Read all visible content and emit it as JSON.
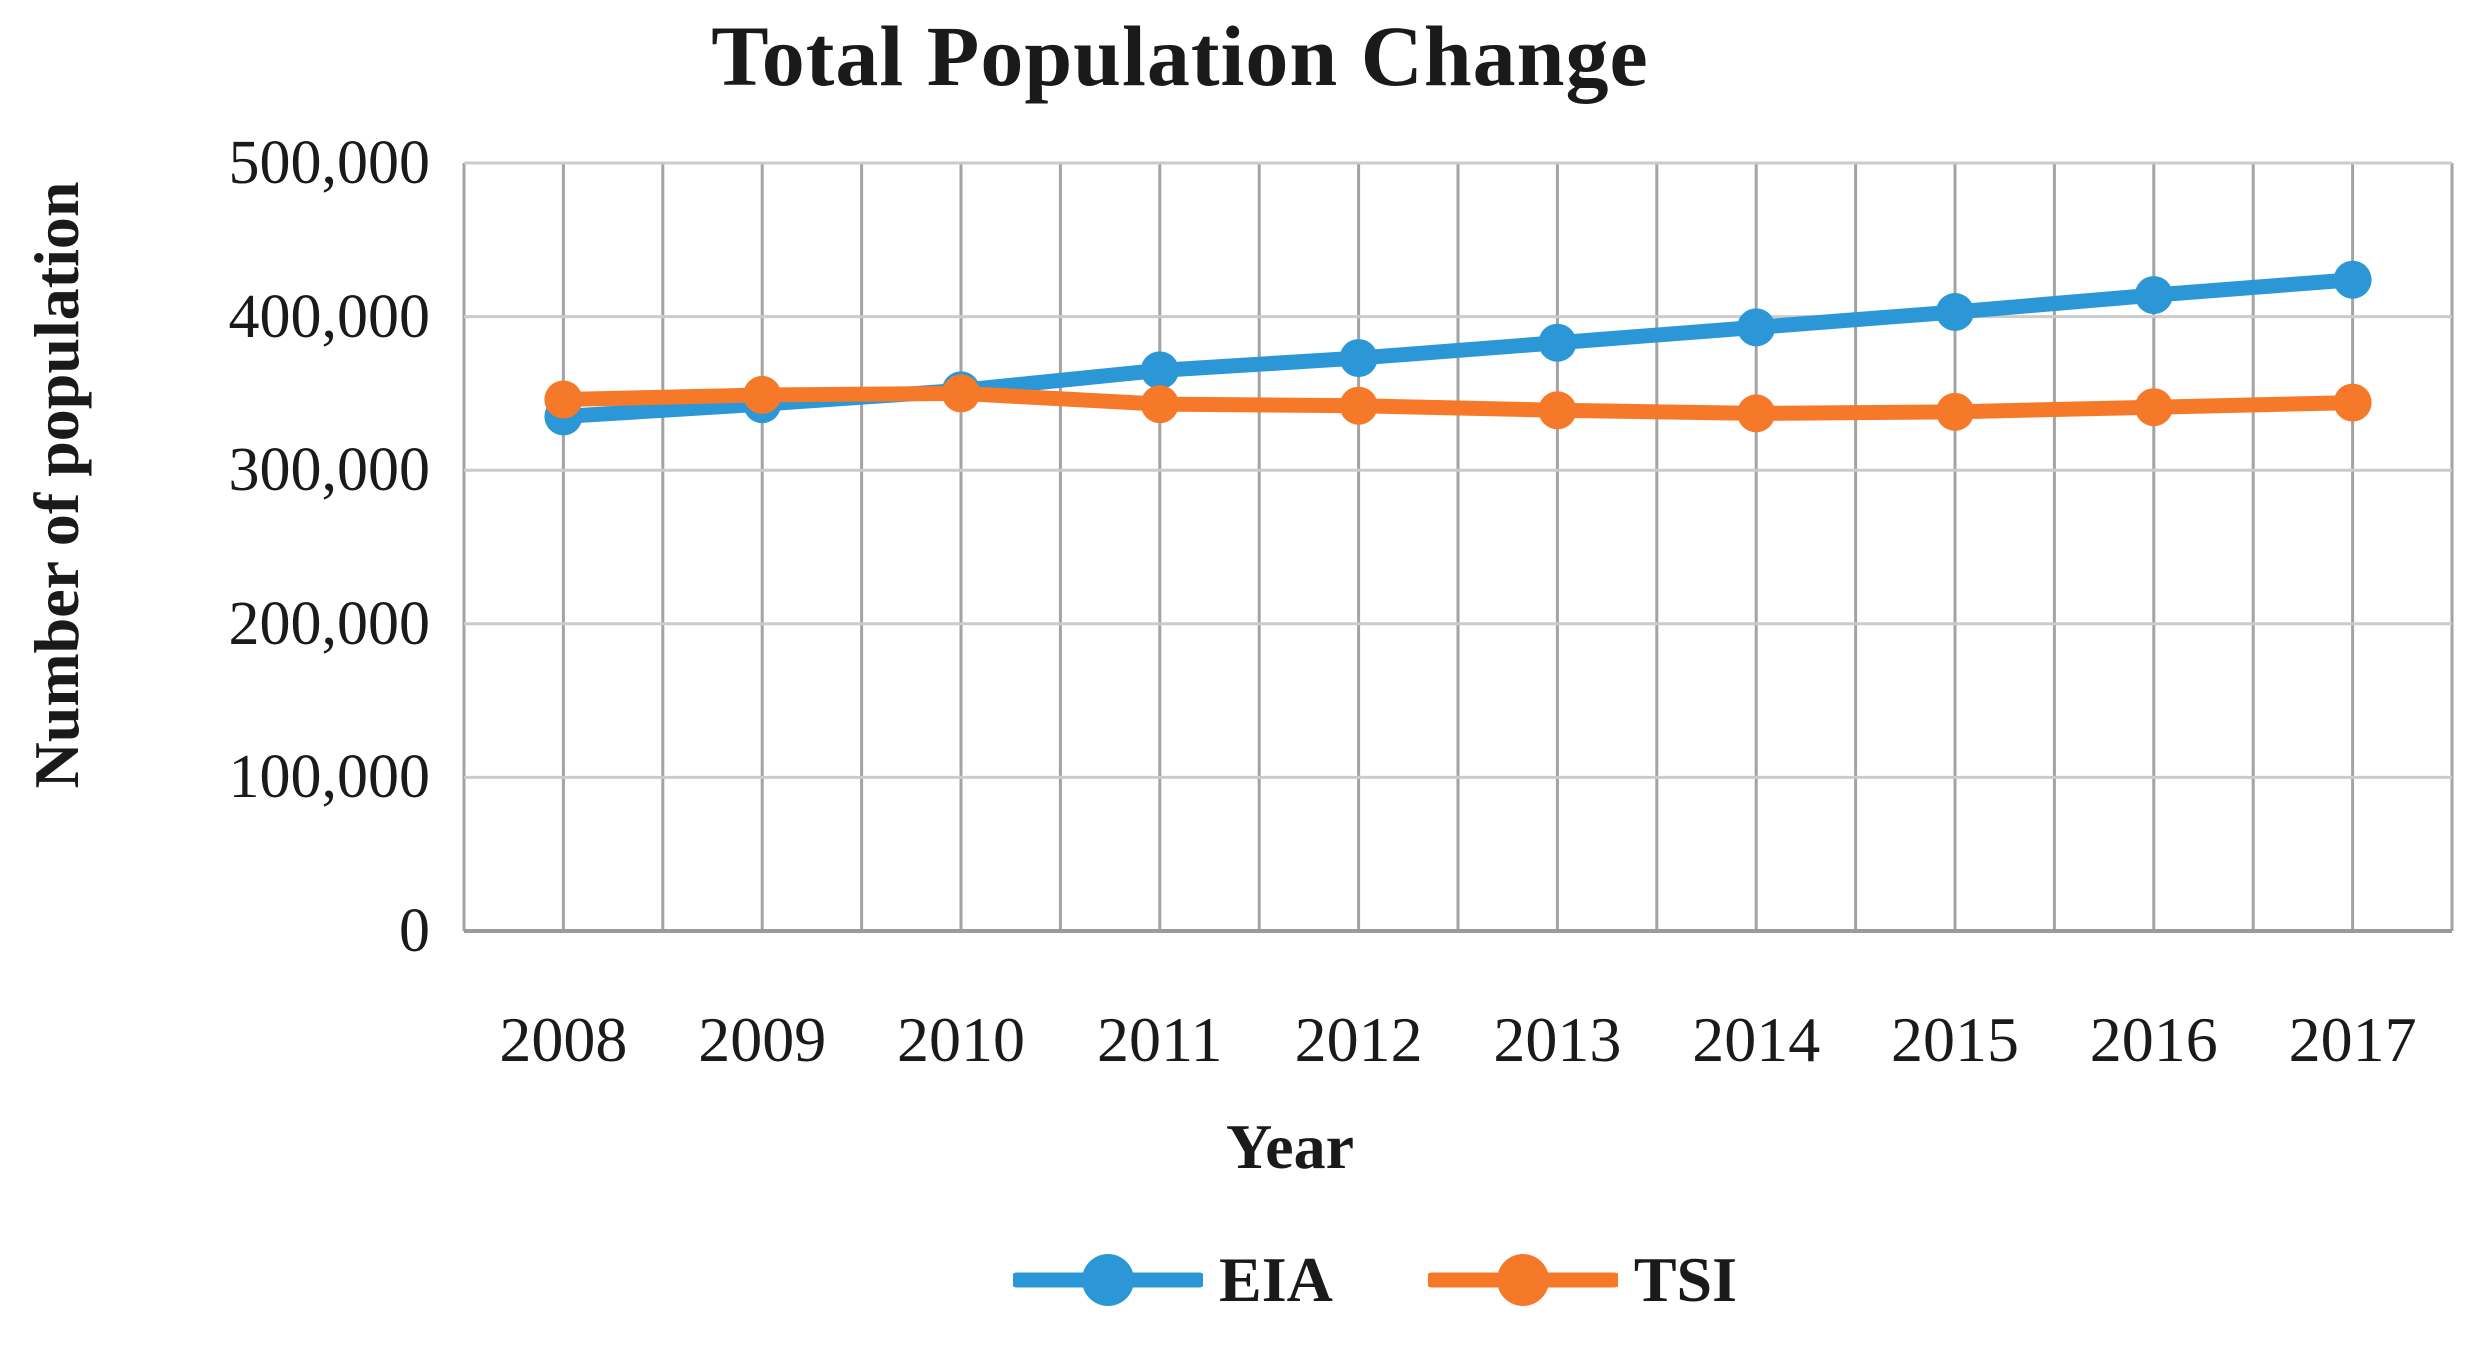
{
  "chart_data": {
    "type": "line",
    "title": "Total Population Change",
    "xlabel": "Year",
    "ylabel": "Number of population",
    "categories": [
      "2008",
      "2009",
      "2010",
      "2011",
      "2012",
      "2013",
      "2014",
      "2015",
      "2016",
      "2017"
    ],
    "series": [
      {
        "name": "EIA",
        "color": "#2B97D6",
        "values": [
          335000,
          343000,
          352000,
          365000,
          373000,
          383000,
          393000,
          403000,
          414000,
          424000
        ]
      },
      {
        "name": "TSI",
        "color": "#F6792A",
        "values": [
          346000,
          349000,
          350000,
          343000,
          342000,
          339000,
          337000,
          338000,
          341000,
          344000
        ]
      }
    ],
    "ylim": [
      0,
      500000
    ],
    "ytick_step": 100000,
    "ytick_labels": [
      "0",
      "100,000",
      "200,000",
      "300,000",
      "400,000",
      "500,000"
    ],
    "grid": {
      "horizontal": true,
      "vertical": true,
      "minor_vertical_per_category": true
    },
    "legend_position": "bottom",
    "colors": {
      "horizontal_grid": "#CBCBCB",
      "vertical_grid": "#A3A3A3",
      "axis_line": "#9B9B9B",
      "text": "#1a1a1a"
    }
  }
}
